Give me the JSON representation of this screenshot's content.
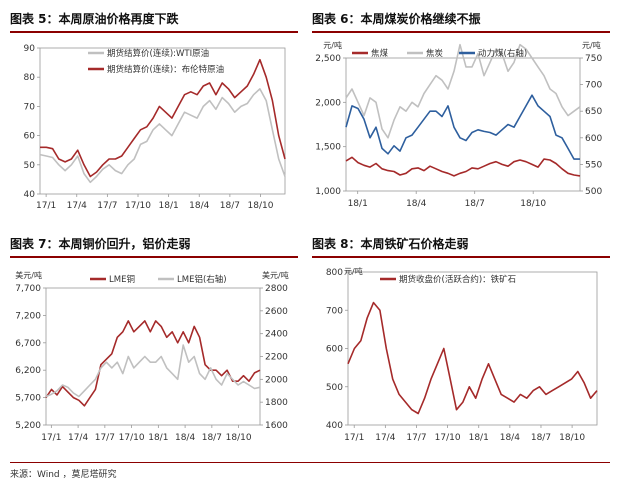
{
  "colors": {
    "dark_red": "#a52a2a",
    "gray": "#c0c0c0",
    "blue": "#2e5f9e",
    "title_rule": "#8b0000"
  },
  "source_text": "来源：Wind ，莫尼塔研究",
  "chart_data": [
    {
      "id": "chart5",
      "type": "line",
      "title": "图表 5：本周原油价格再度下跌",
      "x_ticks": [
        "17/1",
        "17/4",
        "17/7",
        "17/10",
        "18/1",
        "18/4",
        "18/7",
        "18/10"
      ],
      "ylim": [
        40,
        90
      ],
      "y_ticks": [
        40,
        50,
        60,
        70,
        80,
        90
      ],
      "legend_position": "top-left",
      "series": [
        {
          "name": "期货结算价(连续):WTI原油",
          "color": "#c0c0c0",
          "axis": "left",
          "values": [
            53.5,
            53,
            52.5,
            50,
            48,
            50,
            53,
            47,
            44,
            46,
            48.5,
            50,
            48,
            47,
            50,
            52,
            57,
            58,
            62,
            64,
            62,
            60,
            64,
            68,
            67,
            66,
            70,
            72,
            69,
            73,
            71,
            68,
            70,
            71,
            74,
            76,
            72,
            62,
            52,
            46
          ]
        },
        {
          "name": "期货结算价(连续)：布伦特原油",
          "color": "#a52a2a",
          "axis": "left",
          "values": [
            56,
            56,
            55.5,
            52,
            51,
            52,
            55,
            50,
            46,
            47.5,
            50,
            52,
            52,
            53,
            56,
            59,
            62,
            63,
            66,
            70,
            68,
            66,
            70,
            74,
            75,
            74,
            77,
            78,
            74,
            78,
            76,
            73,
            75,
            77,
            81,
            86,
            80,
            72,
            60,
            52
          ]
        }
      ]
    },
    {
      "id": "chart6",
      "type": "line",
      "title": "图表 6：本周煤炭价格继续不振",
      "left_unit": "元/吨",
      "right_unit": "元/吨",
      "x_ticks": [
        "18/1",
        "18/4",
        "18/7",
        "18/10"
      ],
      "ylim": [
        1000,
        2500
      ],
      "y_ticks": [
        1000,
        1500,
        2000,
        2500
      ],
      "y2lim": [
        500,
        750
      ],
      "y2_ticks": [
        500,
        550,
        600,
        650,
        700,
        750
      ],
      "legend_position": "top",
      "series": [
        {
          "name": "焦煤",
          "color": "#a52a2a",
          "axis": "left",
          "values": [
            1340,
            1380,
            1320,
            1290,
            1270,
            1310,
            1250,
            1230,
            1220,
            1180,
            1200,
            1250,
            1260,
            1230,
            1280,
            1250,
            1220,
            1200,
            1170,
            1200,
            1220,
            1260,
            1250,
            1280,
            1310,
            1330,
            1300,
            1280,
            1330,
            1350,
            1330,
            1300,
            1270,
            1360,
            1350,
            1310,
            1250,
            1200,
            1180,
            1170
          ]
        },
        {
          "name": "焦炭",
          "color": "#c0c0c0",
          "axis": "left",
          "values": [
            2050,
            2150,
            2000,
            1850,
            2050,
            2000,
            1700,
            1600,
            1800,
            1950,
            1900,
            2000,
            1950,
            2100,
            2200,
            2300,
            2250,
            2150,
            2350,
            2650,
            2400,
            2400,
            2550,
            2300,
            2450,
            2600,
            2550,
            2350,
            2450,
            2650,
            2600,
            2500,
            2400,
            2300,
            2150,
            2100,
            1950,
            1850,
            1900,
            1950
          ]
        },
        {
          "name": "动力煤(右轴)",
          "color": "#2e5f9e",
          "axis": "right",
          "values": [
            620,
            660,
            655,
            635,
            600,
            620,
            580,
            570,
            585,
            575,
            600,
            605,
            620,
            635,
            650,
            650,
            640,
            660,
            620,
            600,
            595,
            610,
            615,
            612,
            610,
            605,
            615,
            625,
            620,
            640,
            660,
            680,
            660,
            650,
            640,
            605,
            600,
            580,
            560,
            560
          ]
        }
      ]
    },
    {
      "id": "chart7",
      "type": "line",
      "title": "图表 7：本周铜价回升，铝价走弱",
      "left_unit": "美元/吨",
      "right_unit": "美元/吨",
      "x_ticks": [
        "17/1",
        "17/4",
        "17/7",
        "17/10",
        "18/1",
        "18/4",
        "18/7",
        "18/10"
      ],
      "ylim": [
        5200,
        7700
      ],
      "y_ticks": [
        5200,
        5700,
        6200,
        6700,
        7200,
        7700
      ],
      "y2lim": [
        1600,
        2800
      ],
      "y2_ticks": [
        1600,
        1800,
        2000,
        2200,
        2400,
        2600,
        2800
      ],
      "legend_position": "top",
      "series": [
        {
          "name": "LME铜",
          "color": "#a52a2a",
          "axis": "left",
          "values": [
            5700,
            5850,
            5750,
            5900,
            5800,
            5700,
            5650,
            5550,
            5700,
            5850,
            6300,
            6400,
            6500,
            6800,
            6900,
            7100,
            6900,
            7000,
            7100,
            6900,
            7100,
            7000,
            6800,
            6900,
            6700,
            6900,
            6700,
            7000,
            6800,
            6300,
            6200,
            6200,
            6100,
            6200,
            6000,
            6000,
            6100,
            6000,
            6150,
            6200
          ]
        },
        {
          "name": "LME铝(右轴)",
          "color": "#c0c0c0",
          "axis": "right",
          "values": [
            1850,
            1870,
            1900,
            1950,
            1930,
            1880,
            1850,
            1900,
            1950,
            2000,
            2100,
            2150,
            2100,
            2150,
            2050,
            2200,
            2100,
            2150,
            2200,
            2150,
            2150,
            2200,
            2100,
            2050,
            2000,
            2300,
            2150,
            2200,
            2050,
            2000,
            2100,
            2000,
            1950,
            2050,
            2000,
            1950,
            1980,
            1950,
            1920,
            1930
          ]
        }
      ]
    },
    {
      "id": "chart8",
      "type": "line",
      "title": "图表 8：本周铁矿石价格走弱",
      "left_unit": "元/吨",
      "x_ticks": [
        "17/1",
        "17/4",
        "17/7",
        "17/10",
        "18/1",
        "18/4",
        "18/7",
        "18/10"
      ],
      "ylim": [
        400,
        800
      ],
      "y_ticks": [
        400,
        500,
        600,
        700,
        800
      ],
      "legend_position": "top",
      "series": [
        {
          "name": "期货收盘价(活跃合约)：铁矿石",
          "color": "#a52a2a",
          "axis": "left",
          "values": [
            560,
            600,
            620,
            680,
            720,
            700,
            600,
            520,
            480,
            460,
            440,
            430,
            470,
            520,
            560,
            600,
            520,
            440,
            460,
            500,
            470,
            520,
            560,
            520,
            480,
            470,
            460,
            480,
            470,
            490,
            500,
            480,
            490,
            500,
            510,
            520,
            540,
            510,
            470,
            490
          ]
        }
      ]
    }
  ]
}
